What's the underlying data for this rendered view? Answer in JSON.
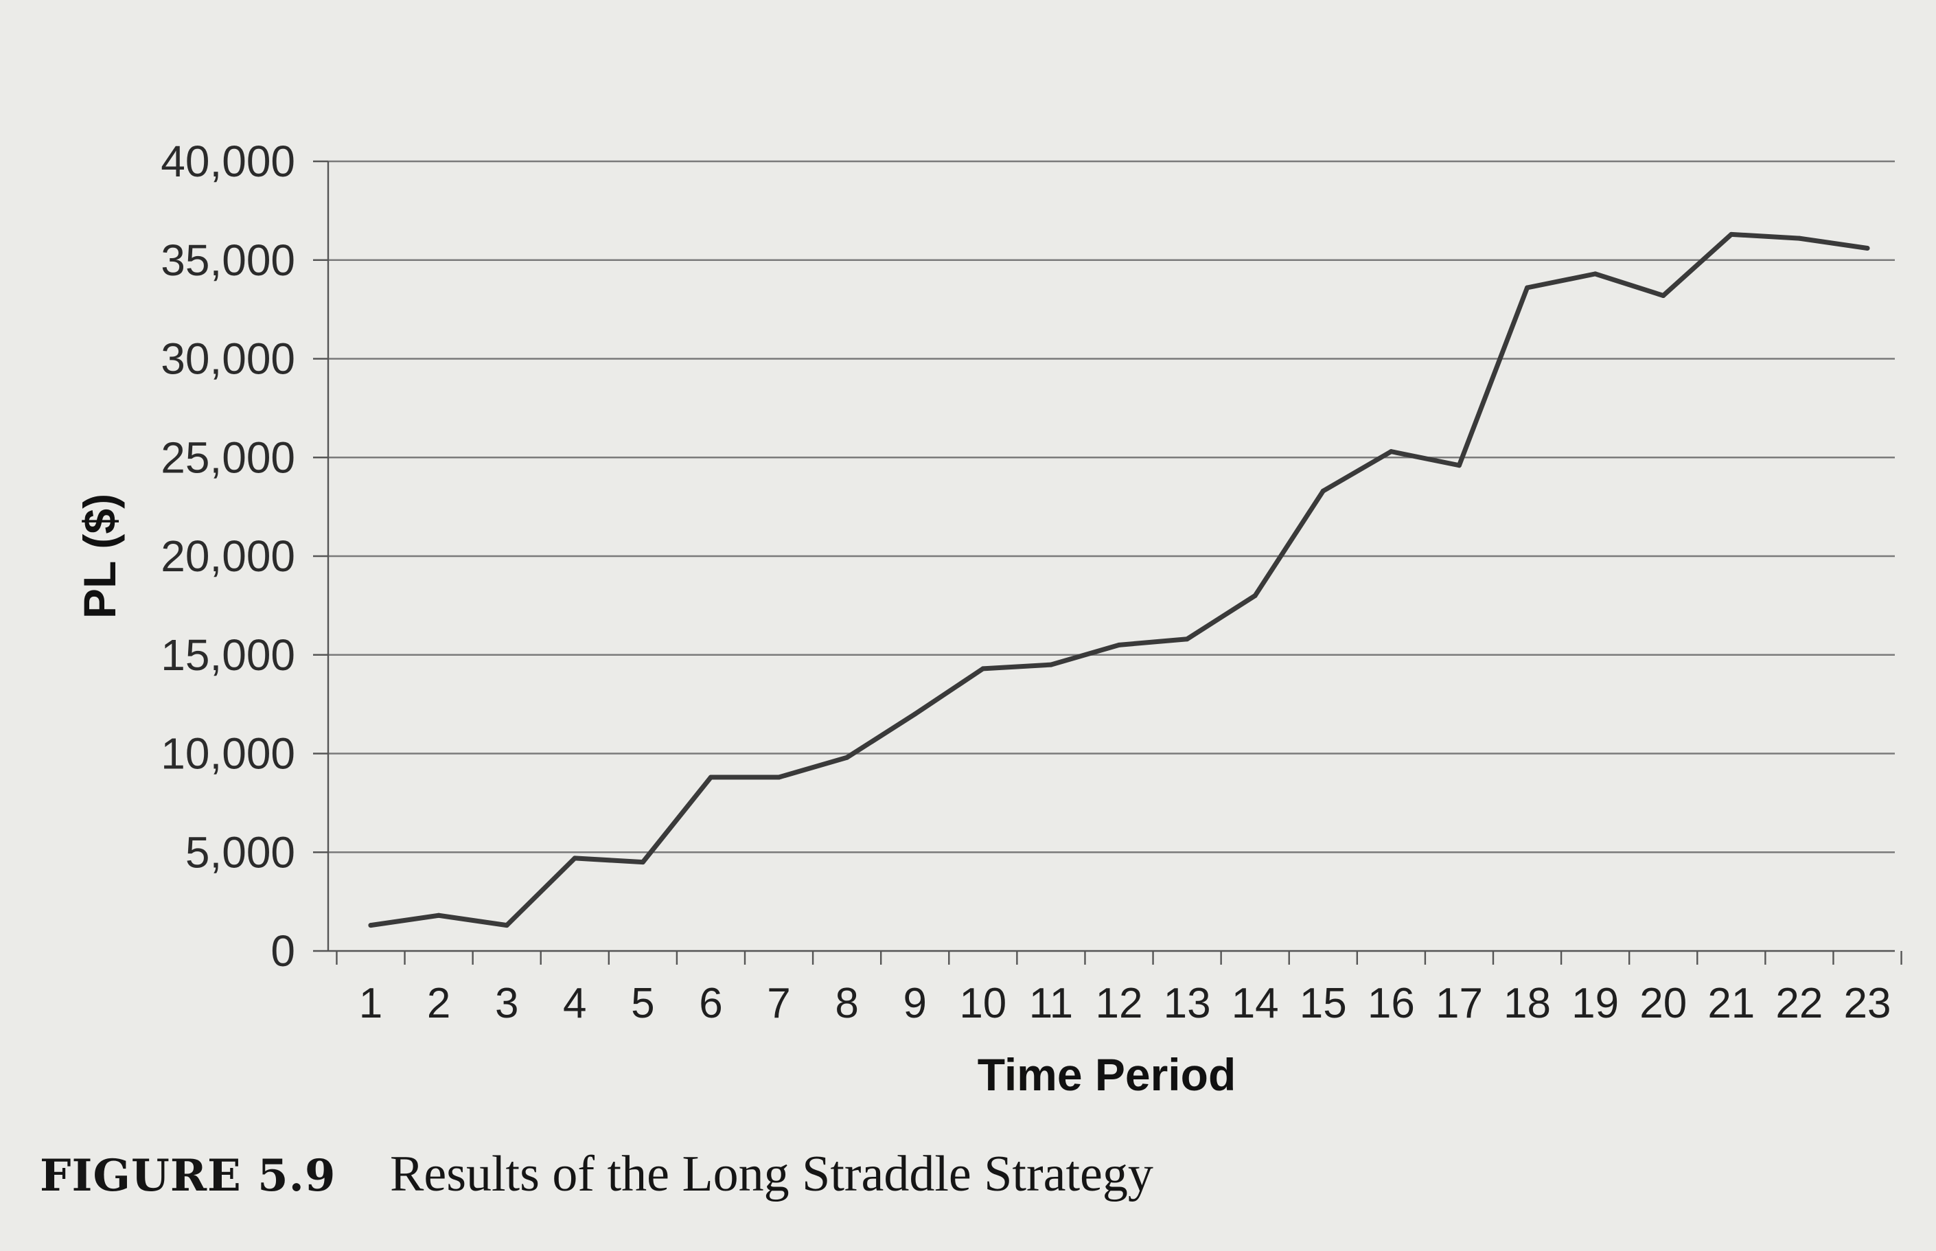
{
  "chart_data": {
    "type": "line",
    "title": "",
    "xlabel": "Time Period",
    "ylabel": "PL ($)",
    "categories": [
      "1",
      "2",
      "3",
      "4",
      "5",
      "6",
      "7",
      "8",
      "9",
      "10",
      "11",
      "12",
      "13",
      "14",
      "15",
      "16",
      "17",
      "18",
      "19",
      "20",
      "21",
      "22",
      "23"
    ],
    "series": [
      {
        "values": [
          1300,
          1800,
          1300,
          4700,
          4500,
          8800,
          8800,
          9800,
          12000,
          14300,
          14500,
          15500,
          15800,
          18000,
          23300,
          25300,
          24600,
          33600,
          34300,
          33200,
          36300,
          36100,
          35600
        ]
      }
    ],
    "yticks": [
      "0",
      "5,000",
      "10,000",
      "15,000",
      "20,000",
      "25,000",
      "30,000",
      "35,000",
      "40,000"
    ],
    "ylim": [
      0,
      40000
    ],
    "grid": true,
    "line_color": "#3a3a3a"
  },
  "caption": {
    "figure_number": "FIGURE 5.9",
    "text": "Results of the Long Straddle Strategy"
  }
}
